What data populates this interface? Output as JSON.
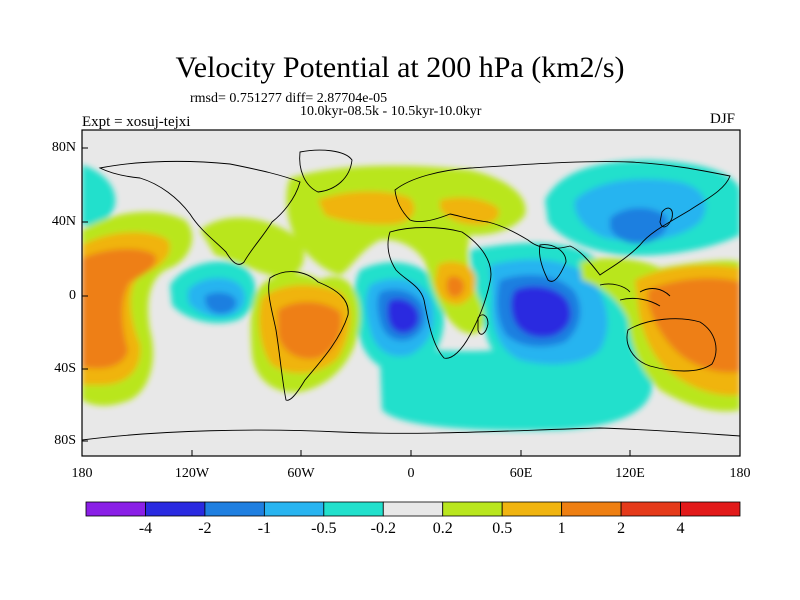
{
  "plot": {
    "title": "Velocity Potential at 200 hPa (km2/s)",
    "stats": "rmsd= 0.751277 diff= 2.87704e-05",
    "period": "10.0kyr-08.5k - 10.5kyr-10.0kyr",
    "experiment": "Expt = xosuj-tejxi",
    "season": "DJF"
  },
  "axes": {
    "lat_ticks": [
      "80N",
      "40N",
      "0",
      "40S",
      "80S"
    ],
    "lon_ticks": [
      "180",
      "120W",
      "60W",
      "0",
      "60E",
      "120E",
      "180"
    ]
  },
  "colorbar": {
    "labels": [
      "-4",
      "-2",
      "-1",
      "-0.5",
      "-0.2",
      "0.2",
      "0.5",
      "1",
      "2",
      "4"
    ],
    "colors": [
      "#8a1fe6",
      "#2a2ae0",
      "#1f7fe0",
      "#28b4f0",
      "#22e0cc",
      "#e8e8e8",
      "#b9e61e",
      "#f0b410",
      "#ee7f12",
      "#e53a1a",
      "#e21a1a"
    ]
  },
  "colors": {
    "background_neutral": "#e8e8e8",
    "coastline": "#000000"
  }
}
